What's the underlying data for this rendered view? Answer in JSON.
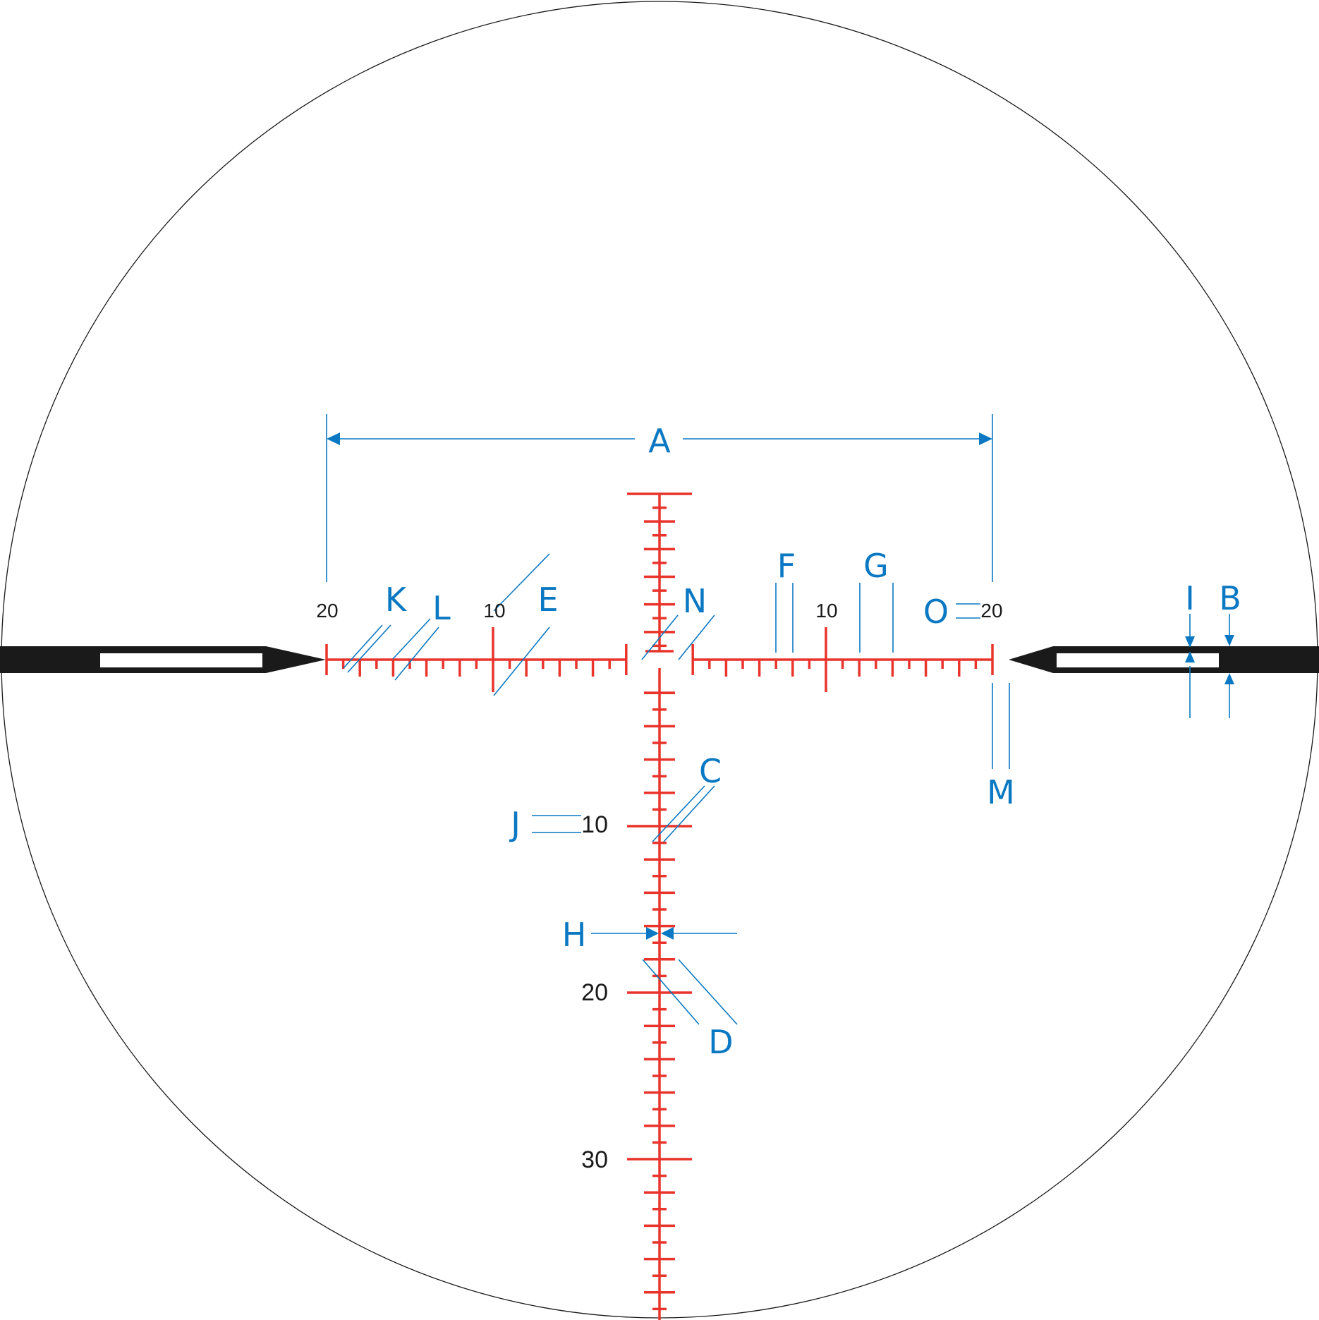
{
  "diagram": {
    "horizontal_numbers": [
      "20",
      "10",
      "10",
      "20"
    ],
    "vertical_numbers": [
      "10",
      "20",
      "30"
    ],
    "dimension_labels": [
      "A",
      "B",
      "C",
      "D",
      "E",
      "F",
      "G",
      "H",
      "I",
      "J",
      "K",
      "L",
      "M",
      "N",
      "O"
    ]
  },
  "colors": {
    "reticle": "#e8342b",
    "dimension": "#0a78c2",
    "post": "#1a1a1a",
    "circle": "#1a1a1a"
  }
}
